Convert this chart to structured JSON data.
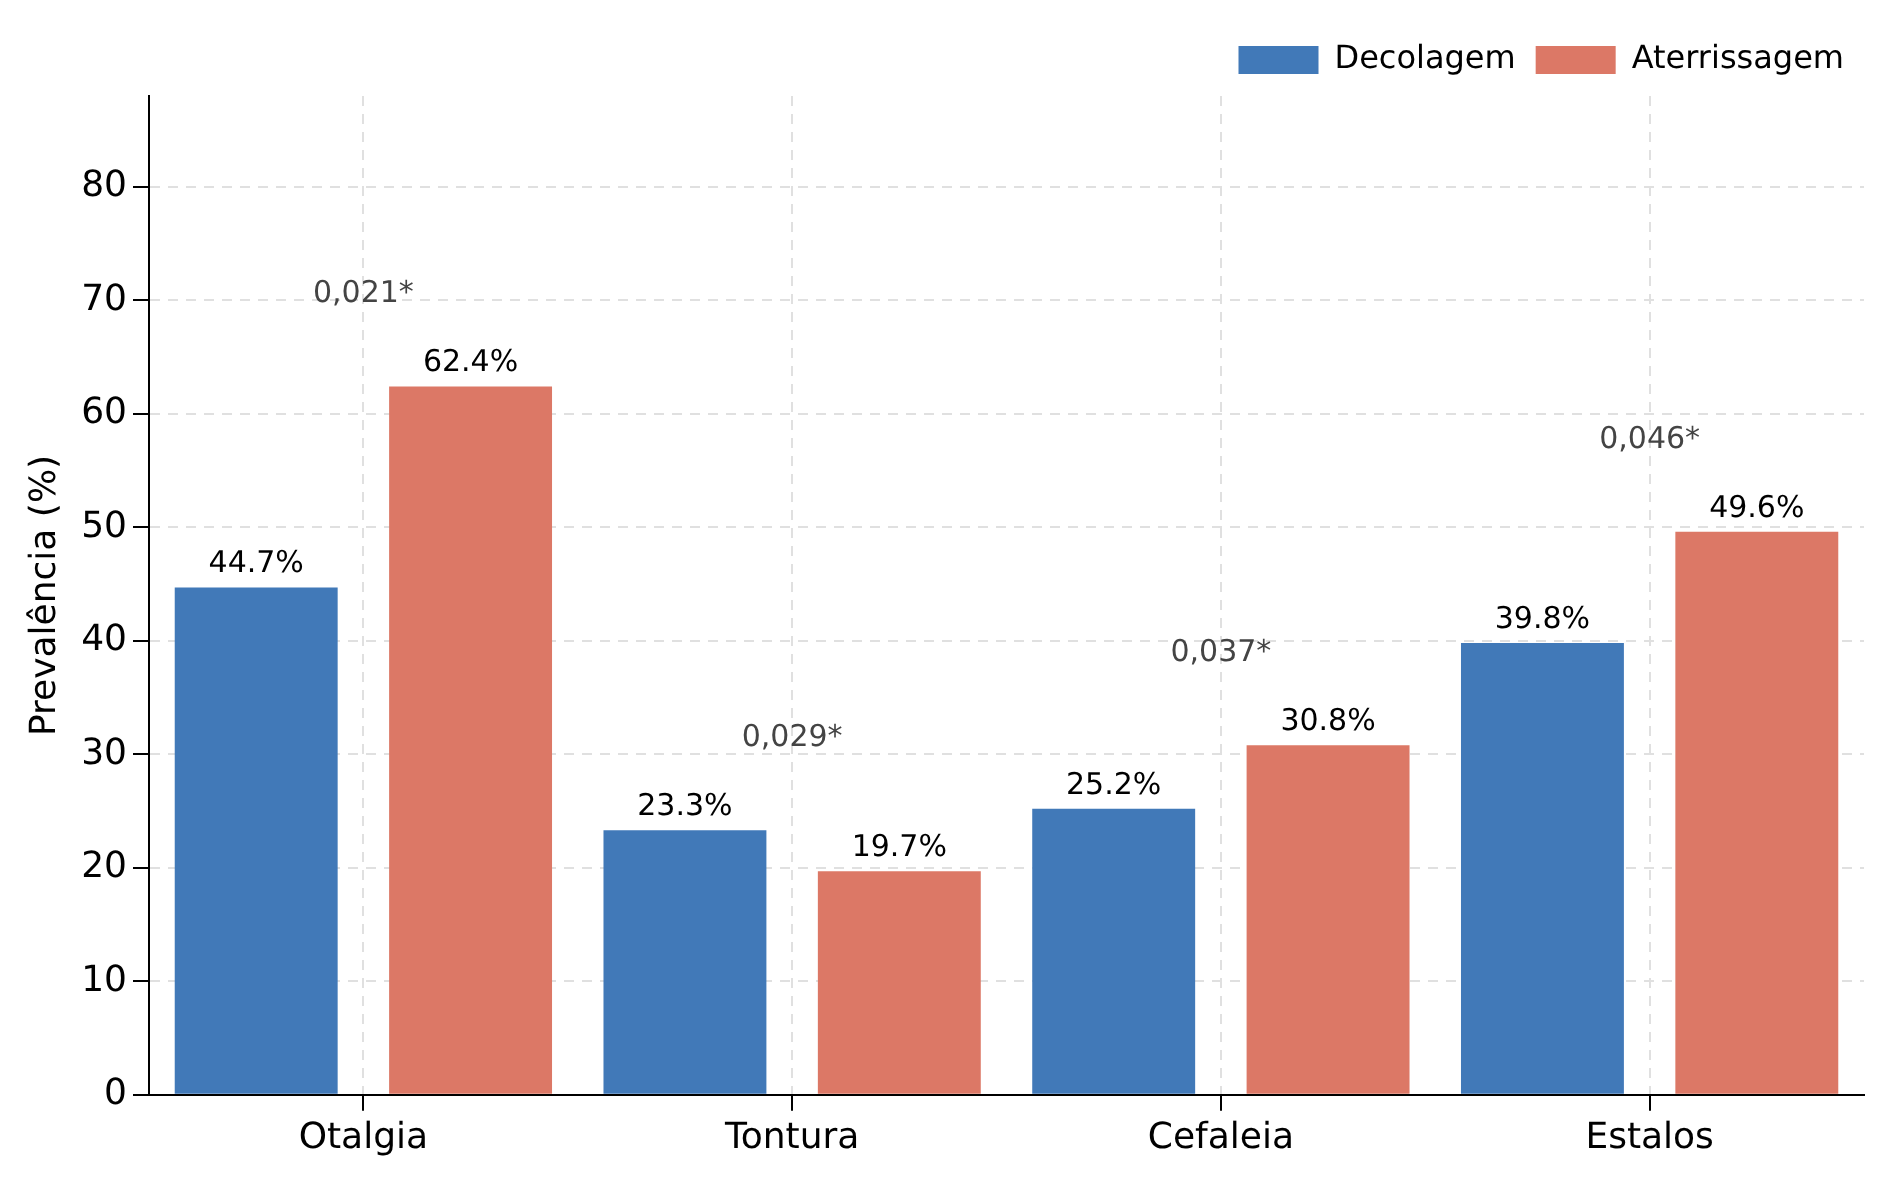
{
  "chart_data": {
    "type": "bar",
    "ylabel": "Prevalência (%)",
    "categories": [
      "Otalgia",
      "Tontura",
      "Cefaleia",
      "Estalos"
    ],
    "series": [
      {
        "name": "Decolagem",
        "color": "#4179b8",
        "values": [
          44.7,
          23.3,
          25.2,
          39.8
        ],
        "value_labels": [
          "44.7%",
          "23.3%",
          "25.2%",
          "39.8%"
        ]
      },
      {
        "name": "Aterrissagem",
        "color": "#dc7866",
        "values": [
          62.4,
          19.7,
          30.8,
          49.6
        ],
        "value_labels": [
          "62.4%",
          "19.7%",
          "30.8%",
          "49.6%"
        ]
      }
    ],
    "ylim": [
      0,
      88
    ],
    "yticks": [
      0,
      10,
      20,
      30,
      40,
      50,
      60,
      70,
      80
    ],
    "grid": true,
    "legend": "top right",
    "annotations": [
      "0,021*",
      "0,029*",
      "0,037*",
      "0,046*"
    ]
  }
}
